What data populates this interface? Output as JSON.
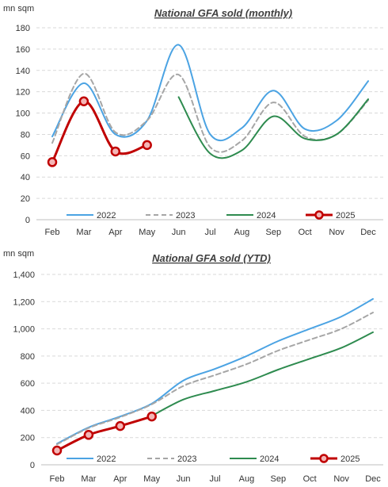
{
  "chart_data": [
    {
      "type": "line",
      "title": "National GFA sold (monthly)",
      "unit_label": "mn sqm",
      "categories": [
        "Feb",
        "Mar",
        "Apr",
        "May",
        "Jun",
        "Jul",
        "Aug",
        "Sep",
        "Oct",
        "Nov",
        "Dec"
      ],
      "ylim": [
        0,
        180
      ],
      "yticks": [
        0,
        20,
        40,
        60,
        80,
        100,
        120,
        140,
        160,
        180
      ],
      "ytick_labels": [
        "0",
        "20",
        "40",
        "60",
        "80",
        "100",
        "120",
        "140",
        "160",
        "180"
      ],
      "grid": true,
      "legend_position": "bottom",
      "series": [
        {
          "name": "2022",
          "color": "#4BA3E3",
          "style": "solid",
          "values": [
            78,
            128,
            80,
            93,
            164,
            80,
            86,
            121,
            85,
            93,
            130
          ]
        },
        {
          "name": "2023",
          "color": "#A6A6A6",
          "style": "dashed",
          "values": [
            72,
            137,
            82,
            93,
            136,
            68,
            74,
            110,
            78,
            80,
            112
          ]
        },
        {
          "name": "2024",
          "color": "#2E8B4F",
          "style": "solid",
          "values": [
            null,
            null,
            null,
            null,
            115,
            62,
            65,
            97,
            76,
            80,
            113
          ]
        },
        {
          "name": "2025",
          "color": "#C00000",
          "style": "solid-markers",
          "values": [
            54,
            111,
            64,
            70,
            null,
            null,
            null,
            null,
            null,
            null,
            null
          ]
        }
      ]
    },
    {
      "type": "line",
      "title": "National GFA sold (YTD)",
      "unit_label": "mn sqm",
      "categories": [
        "Feb",
        "Mar",
        "Apr",
        "May",
        "Jun",
        "Jul",
        "Aug",
        "Sep",
        "Oct",
        "Nov",
        "Dec"
      ],
      "ylim": [
        0,
        1400
      ],
      "yticks": [
        0,
        200,
        400,
        600,
        800,
        1000,
        1200,
        1400
      ],
      "ytick_labels": [
        "0",
        "200",
        "400",
        "600",
        "800",
        "1,000",
        "1,200",
        "1,400"
      ],
      "grid": true,
      "legend_position": "bottom",
      "series": [
        {
          "name": "2022",
          "color": "#4BA3E3",
          "style": "solid",
          "values": [
            155,
            275,
            355,
            450,
            620,
            705,
            800,
            910,
            1000,
            1090,
            1220
          ]
        },
        {
          "name": "2023",
          "color": "#A6A6A6",
          "style": "dashed",
          "values": [
            150,
            270,
            350,
            445,
            580,
            660,
            740,
            840,
            920,
            1000,
            1120
          ]
        },
        {
          "name": "2024",
          "color": "#2E8B4F",
          "style": "solid",
          "values": [
            null,
            null,
            null,
            360,
            480,
            545,
            610,
            700,
            780,
            860,
            975
          ]
        },
        {
          "name": "2025",
          "color": "#C00000",
          "style": "solid-markers",
          "values": [
            105,
            220,
            285,
            355,
            null,
            null,
            null,
            null,
            null,
            null,
            null
          ]
        }
      ]
    }
  ]
}
